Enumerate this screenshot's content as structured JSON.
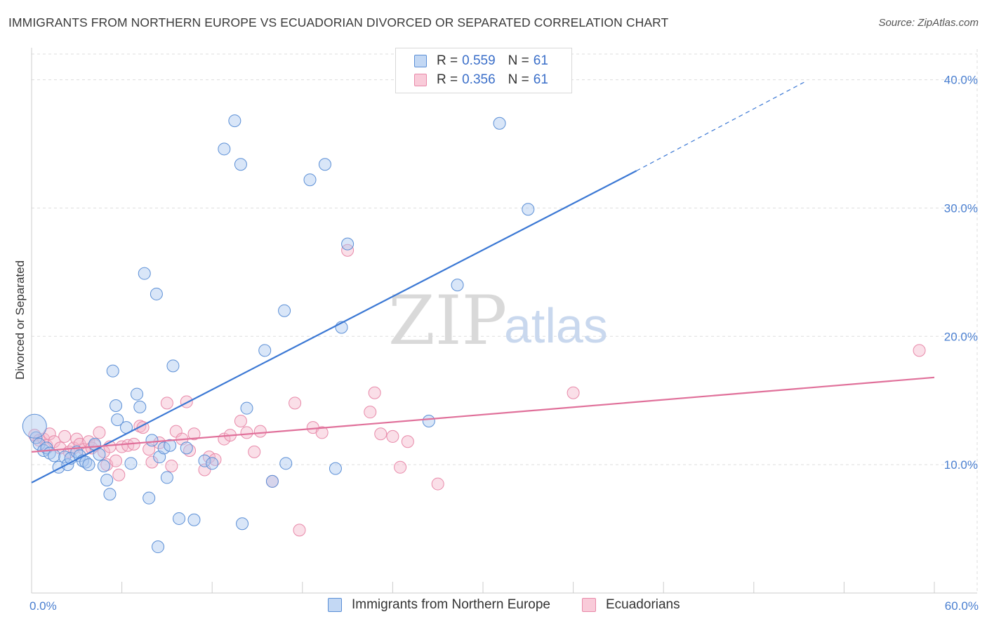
{
  "title": "IMMIGRANTS FROM NORTHERN EUROPE VS ECUADORIAN DIVORCED OR SEPARATED CORRELATION CHART",
  "source": "Source: ZipAtlas.com",
  "watermark": {
    "zip": "ZIP",
    "atlas": "atlas"
  },
  "colors": {
    "blue_fill": "#aac8ef",
    "blue_stroke": "#5b8fd6",
    "blue_line": "#3b78d4",
    "pink_fill": "#f5b7cb",
    "pink_stroke": "#e889a9",
    "pink_line": "#e0709a",
    "axis_text": "#4a7fd0",
    "grid": "#dddddd"
  },
  "legend": {
    "rows": [
      {
        "r_label": "R =",
        "r_value": "0.559",
        "n_label": "N =",
        "n_value": "61"
      },
      {
        "r_label": "R =",
        "r_value": "0.356",
        "n_label": "N =",
        "n_value": "61"
      }
    ]
  },
  "bottom_legend": {
    "series1": "Immigrants from Northern Europe",
    "series2": "Ecuadorians"
  },
  "chart_data": {
    "type": "scatter",
    "title": "IMMIGRANTS FROM NORTHERN EUROPE VS ECUADORIAN DIVORCED OR SEPARATED CORRELATION CHART",
    "xlabel": "",
    "ylabel": "Divorced or Separated",
    "xlim": [
      0,
      60
    ],
    "ylim": [
      0,
      42
    ],
    "x_tick_labels": [
      "0.0%",
      "60.0%"
    ],
    "y_ticks": [
      10,
      20,
      30,
      40
    ],
    "y_tick_labels": [
      "10.0%",
      "20.0%",
      "30.0%",
      "40.0%"
    ],
    "series": [
      {
        "name": "Immigrants from Northern Europe",
        "R": 0.559,
        "N": 61,
        "trend": {
          "x0": 0,
          "y0": 8.6,
          "x1": 40.2,
          "y1": 32.9,
          "dashed_to_x": 51.5,
          "dashed_to_y": 39.9
        },
        "points": [
          [
            0.3,
            12.1
          ],
          [
            0.5,
            11.6
          ],
          [
            0.8,
            11.1
          ],
          [
            1.0,
            11.3
          ],
          [
            1.2,
            10.9
          ],
          [
            1.5,
            10.7
          ],
          [
            1.8,
            9.8
          ],
          [
            2.2,
            10.6
          ],
          [
            2.4,
            10.0
          ],
          [
            2.6,
            10.5
          ],
          [
            3.0,
            11.0
          ],
          [
            3.2,
            10.7
          ],
          [
            3.4,
            10.3
          ],
          [
            3.6,
            10.2
          ],
          [
            3.8,
            10.0
          ],
          [
            4.2,
            11.6
          ],
          [
            4.5,
            10.8
          ],
          [
            4.8,
            9.9
          ],
          [
            5.0,
            8.8
          ],
          [
            5.2,
            7.7
          ],
          [
            5.4,
            17.3
          ],
          [
            5.6,
            14.6
          ],
          [
            5.7,
            13.5
          ],
          [
            6.3,
            12.9
          ],
          [
            6.6,
            10.1
          ],
          [
            7.0,
            15.5
          ],
          [
            7.2,
            14.5
          ],
          [
            7.5,
            24.9
          ],
          [
            7.8,
            7.4
          ],
          [
            8.0,
            11.9
          ],
          [
            8.3,
            23.3
          ],
          [
            8.5,
            10.6
          ],
          [
            8.8,
            11.3
          ],
          [
            9.0,
            9.0
          ],
          [
            9.2,
            11.5
          ],
          [
            9.4,
            17.7
          ],
          [
            9.8,
            5.8
          ],
          [
            10.3,
            11.3
          ],
          [
            10.8,
            5.7
          ],
          [
            11.5,
            10.3
          ],
          [
            12.0,
            10.1
          ],
          [
            12.8,
            34.6
          ],
          [
            13.5,
            36.8
          ],
          [
            13.9,
            33.4
          ],
          [
            14.0,
            5.4
          ],
          [
            14.3,
            14.4
          ],
          [
            15.5,
            18.9
          ],
          [
            16.0,
            8.7
          ],
          [
            16.8,
            22.0
          ],
          [
            16.9,
            10.1
          ],
          [
            18.5,
            32.2
          ],
          [
            19.5,
            33.4
          ],
          [
            20.2,
            9.7
          ],
          [
            20.6,
            20.7
          ],
          [
            21.0,
            27.2
          ],
          [
            8.4,
            3.6
          ],
          [
            26.4,
            13.4
          ],
          [
            28.3,
            24.0
          ],
          [
            31.1,
            36.6
          ],
          [
            33.0,
            29.9
          ],
          [
            0.2,
            13.0
          ]
        ],
        "large_point": [
          0.2,
          13.0
        ]
      },
      {
        "name": "Ecuadorians",
        "R": 0.356,
        "N": 61,
        "trend": {
          "x0": 0,
          "y0": 11.0,
          "x1": 60,
          "y1": 16.8
        },
        "points": [
          [
            0.2,
            12.3
          ],
          [
            0.5,
            11.9
          ],
          [
            0.8,
            12.0
          ],
          [
            1.0,
            11.5
          ],
          [
            1.2,
            12.4
          ],
          [
            1.5,
            11.8
          ],
          [
            1.9,
            11.3
          ],
          [
            2.2,
            12.2
          ],
          [
            2.5,
            11.0
          ],
          [
            2.8,
            11.3
          ],
          [
            3.0,
            12.0
          ],
          [
            3.2,
            11.6
          ],
          [
            3.5,
            11.2
          ],
          [
            3.8,
            11.8
          ],
          [
            4.0,
            11.3
          ],
          [
            4.2,
            11.5
          ],
          [
            4.5,
            12.5
          ],
          [
            4.8,
            11.0
          ],
          [
            5.0,
            10.0
          ],
          [
            5.2,
            11.4
          ],
          [
            5.6,
            10.3
          ],
          [
            5.8,
            9.2
          ],
          [
            6.0,
            11.4
          ],
          [
            6.4,
            11.5
          ],
          [
            6.8,
            11.6
          ],
          [
            7.2,
            13.0
          ],
          [
            7.4,
            12.9
          ],
          [
            7.8,
            11.2
          ],
          [
            8.0,
            10.2
          ],
          [
            8.5,
            11.7
          ],
          [
            9.0,
            14.8
          ],
          [
            9.3,
            9.9
          ],
          [
            9.6,
            12.6
          ],
          [
            10.0,
            12.0
          ],
          [
            10.3,
            14.9
          ],
          [
            10.5,
            11.1
          ],
          [
            10.8,
            12.4
          ],
          [
            11.5,
            9.6
          ],
          [
            11.8,
            10.6
          ],
          [
            12.2,
            10.4
          ],
          [
            12.8,
            12.0
          ],
          [
            13.2,
            12.3
          ],
          [
            13.9,
            13.4
          ],
          [
            14.3,
            12.5
          ],
          [
            14.8,
            11.0
          ],
          [
            15.2,
            12.6
          ],
          [
            16.0,
            8.7
          ],
          [
            17.5,
            14.8
          ],
          [
            17.8,
            4.9
          ],
          [
            18.7,
            12.9
          ],
          [
            19.3,
            12.5
          ],
          [
            21.0,
            26.7
          ],
          [
            22.5,
            14.1
          ],
          [
            22.8,
            15.6
          ],
          [
            23.2,
            12.4
          ],
          [
            24.0,
            12.2
          ],
          [
            24.5,
            9.8
          ],
          [
            25.0,
            11.8
          ],
          [
            27.0,
            8.5
          ],
          [
            36.0,
            15.6
          ],
          [
            59.0,
            18.9
          ]
        ]
      }
    ]
  }
}
